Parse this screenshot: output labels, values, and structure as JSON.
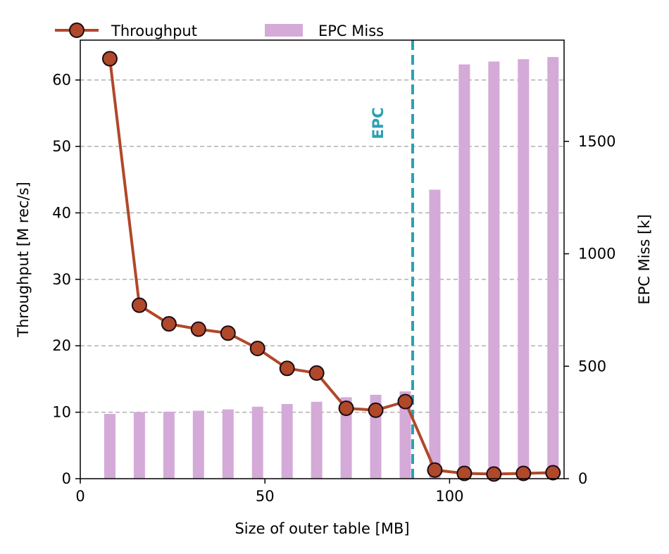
{
  "chart_data": {
    "type": "bar+line",
    "xlabel": "Size of outer table [MB]",
    "ylabel_left": "Throughput [M rec/s]",
    "ylabel_right": "EPC Miss [k]",
    "xlim": [
      0,
      131
    ],
    "ylim_left": [
      0,
      66
    ],
    "ylim_right": [
      0,
      1950
    ],
    "xticks": [
      0,
      50,
      100
    ],
    "yticks_left": [
      0,
      10,
      20,
      30,
      40,
      50,
      60
    ],
    "yticks_right": [
      0,
      500,
      1000,
      1500
    ],
    "grid": "horizontal dashed at left-axis ticks",
    "legend_position": "top-left, above plot",
    "series": [
      {
        "name": "Throughput",
        "kind": "line",
        "axis": "left",
        "color": "#b0482a",
        "x": [
          8,
          16,
          24,
          32,
          40,
          48,
          56,
          64,
          72,
          80,
          88,
          96,
          104,
          112,
          120,
          128
        ],
        "values": [
          63.2,
          26.1,
          23.3,
          22.5,
          21.9,
          19.6,
          16.6,
          15.9,
          10.6,
          10.3,
          11.6,
          1.3,
          0.8,
          0.7,
          0.8,
          0.9
        ]
      },
      {
        "name": "EPC Miss",
        "kind": "bar",
        "axis": "right",
        "color": "#d4aad8",
        "x": [
          8,
          16,
          24,
          32,
          40,
          48,
          56,
          64,
          72,
          80,
          88,
          96,
          104,
          112,
          120,
          128
        ],
        "values": [
          288,
          296,
          298,
          302,
          308,
          320,
          332,
          342,
          362,
          373,
          388,
          1285,
          1842,
          1855,
          1865,
          1875
        ]
      }
    ],
    "annotation": {
      "text": "EPC",
      "x": 90,
      "color": "#2aa1b3",
      "style": "vertical dashed line"
    }
  }
}
